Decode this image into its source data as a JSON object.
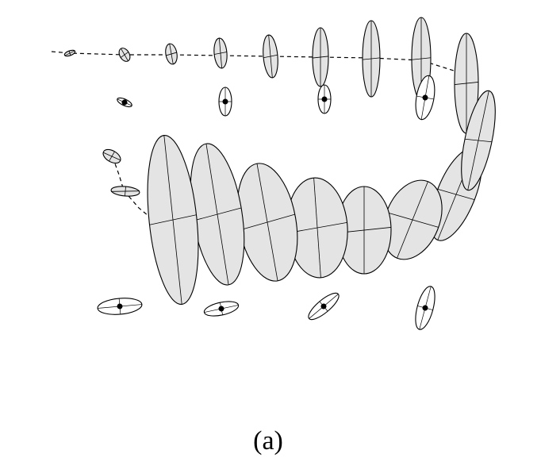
{
  "caption": "(a)"
}
